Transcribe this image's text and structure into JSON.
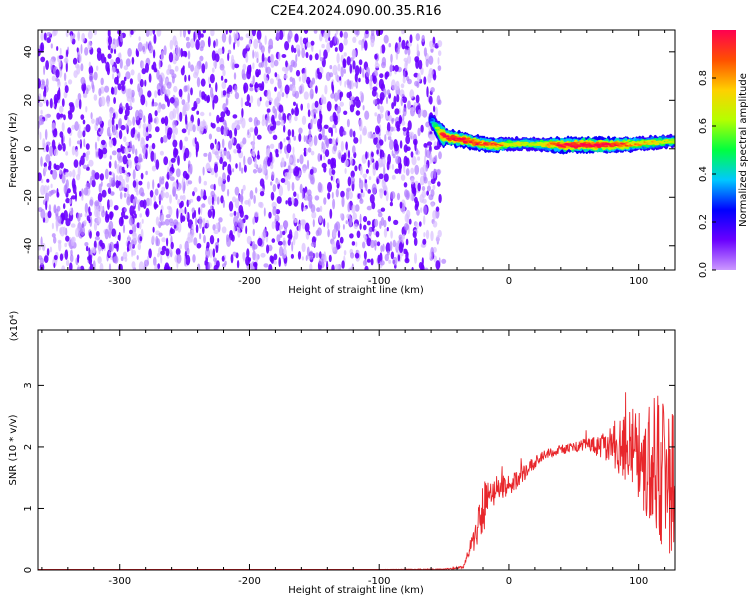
{
  "title": "C2E4.2024.090.00.35.R16",
  "colors": {
    "snr_line": "#e8262b",
    "noise_purple": "#6a00ff"
  },
  "chart_data": [
    {
      "type": "heatmap",
      "xlabel": "Height of straight line (km)",
      "ylabel": "Frequency (Hz)",
      "xlim": [
        -363,
        128
      ],
      "ylim": [
        -50,
        49
      ],
      "xticks": [
        -300,
        -200,
        -100,
        0,
        100
      ],
      "yticks": [
        -40,
        -20,
        0,
        20,
        40
      ],
      "noise_region": {
        "x": [
          -363,
          -53
        ],
        "level": 0.12
      },
      "signal_ridge": {
        "x": [
          -60,
          -55,
          -50,
          -40,
          -30,
          -20,
          -10,
          0,
          20,
          40,
          60,
          80,
          100,
          120,
          128
        ],
        "freq": [
          12,
          8,
          5,
          4,
          3,
          2,
          1.5,
          2,
          2,
          1.5,
          1.5,
          1.5,
          2,
          3,
          3
        ],
        "amplitude": [
          0.2,
          0.5,
          0.9,
          0.9,
          0.85,
          0.8,
          0.8,
          0.6,
          0.55,
          0.9,
          0.95,
          0.9,
          0.7,
          0.6,
          0.5
        ]
      },
      "colorbar": {
        "label": "Normalized spectral amplitude",
        "range": [
          0,
          1
        ],
        "ticks": [
          "0.0",
          "0.2",
          "0.4",
          "0.6",
          "0.8"
        ],
        "colormap": [
          "#cc99ff",
          "#6a00ff",
          "#0000ff",
          "#00c8ff",
          "#00ff40",
          "#b4ff00",
          "#ffd000",
          "#ff5000",
          "#ff0050"
        ]
      }
    },
    {
      "type": "line",
      "xlabel": "Height of straight line (km)",
      "ylabel": "SNR (10 * v/v)",
      "multiplier_label": "(x10⁴)",
      "xlim": [
        -363,
        128
      ],
      "ylim": [
        0,
        3.9
      ],
      "xticks": [
        -300,
        -200,
        -100,
        0,
        100
      ],
      "yticks": [
        "0",
        "1",
        "2",
        "3"
      ],
      "series": [
        {
          "x": [
            -363,
            -100,
            -50,
            -35,
            -28,
            -25,
            -20,
            -15,
            -10,
            0,
            10,
            20,
            30,
            40,
            50,
            60,
            70,
            80,
            90,
            100,
            110,
            120,
            128
          ],
          "y": [
            0.01,
            0.01,
            0.01,
            0.05,
            0.45,
            0.7,
            1.0,
            1.2,
            1.3,
            1.35,
            1.55,
            1.75,
            1.9,
            1.95,
            2.0,
            2.05,
            2.0,
            2.05,
            2.0,
            1.9,
            1.7,
            1.5,
            1.4
          ],
          "spread": [
            0,
            0,
            0.01,
            0.02,
            0.2,
            0.35,
            0.45,
            0.3,
            0.25,
            0.2,
            0.15,
            0.1,
            0.08,
            0.08,
            0.08,
            0.1,
            0.2,
            0.35,
            0.6,
            0.9,
            1.2,
            1.3,
            1.2
          ]
        }
      ]
    }
  ]
}
